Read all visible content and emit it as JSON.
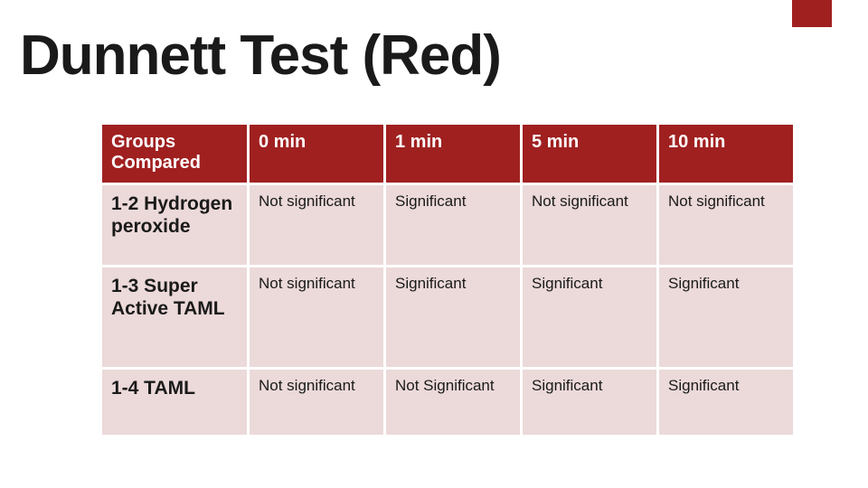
{
  "title": "Dunnett Test (Red)",
  "accent_color": "#a02020",
  "header_bg": "#a02020",
  "cell_bg": "#ecd9d9",
  "columns": [
    "Groups Compared",
    "0 min",
    "1 min",
    "5 min",
    "10 min"
  ],
  "rows": [
    {
      "label": "1-2 Hydrogen peroxide",
      "cells": [
        "Not significant",
        "Significant",
        "Not significant",
        "Not significant"
      ]
    },
    {
      "label": "1-3 Super Active TAML",
      "cells": [
        "Not significant",
        "Significant",
        "Significant",
        "Significant"
      ]
    },
    {
      "label": "1-4 TAML",
      "cells": [
        "Not significant",
        "Not Significant",
        "Significant",
        "Significant"
      ]
    }
  ],
  "title_fontsize": 62,
  "header_fontsize": 20,
  "rowlabel_fontsize": 21,
  "cell_fontsize": 17
}
